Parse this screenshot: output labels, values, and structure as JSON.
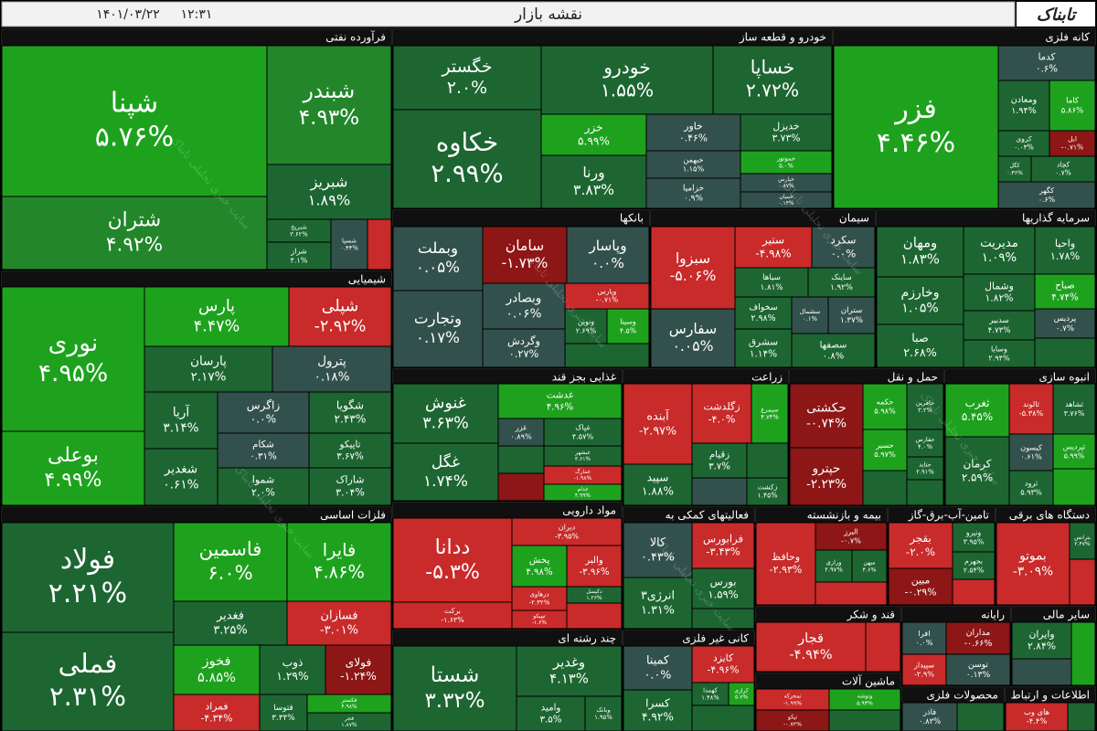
{
  "header": {
    "title": "نقشه بازار",
    "date": "۱۴۰۱/۰۳/۲۲",
    "time": "۱۲:۳۱",
    "logo": "تابناک",
    "watermark": "سایت خبری تحلیلی تابناک"
  },
  "sectors": [
    {
      "name": "فرآورده نفتی",
      "tiles": [
        {
          "label": "شپنا",
          "change": "۵.۷۶%"
        },
        {
          "label": "شتران",
          "change": "۴.۹۲%"
        },
        {
          "label": "شبندر",
          "change": "۴.۹۳%"
        },
        {
          "label": "شبریز",
          "change": "۱.۸۹%"
        },
        {
          "label": "شبریخ",
          "change": "۳.۶۲%"
        },
        {
          "label": "شراز",
          "change": "۴.۱%"
        },
        {
          "label": "شسپا",
          "change": "۰.۴۴%"
        }
      ]
    },
    {
      "name": "خودرو و قطعه ساز",
      "tiles": [
        {
          "label": "خگستر",
          "change": "۲.۰%"
        },
        {
          "label": "خکاوه",
          "change": "۲.۹۹%"
        },
        {
          "label": "خودرو",
          "change": "۱.۵۵%"
        },
        {
          "label": "خساپا",
          "change": "۲.۷۲%"
        },
        {
          "label": "خزر",
          "change": "۵.۹۹%"
        },
        {
          "label": "ورنا",
          "change": "۳.۸۳%"
        },
        {
          "label": "خاور",
          "change": "۰.۴۶%"
        },
        {
          "label": "خبهمن",
          "change": "۱.۱۵%"
        },
        {
          "label": "خزامیا",
          "change": "۰.۹%"
        },
        {
          "label": "خدیزل",
          "change": "۳.۷۳%"
        },
        {
          "label": "خموتور",
          "change": "۵.۰%"
        },
        {
          "label": "خپارس",
          "change": "۰.۸۷%"
        },
        {
          "label": "خبنیان",
          "change": "۰.۱۴%"
        }
      ]
    },
    {
      "name": "کانه فلزی",
      "tiles": [
        {
          "label": "فزر",
          "change": "۴.۴۶%"
        },
        {
          "label": "کدما",
          "change": "۰.۶%"
        },
        {
          "label": "ومعادن",
          "change": "۱.۹۴%"
        },
        {
          "label": "کاما",
          "change": "۵.۸۶%"
        },
        {
          "label": "کروی",
          "change": "۰.۰۳%"
        },
        {
          "label": "ابل",
          "change": "-۰.۷۱%"
        },
        {
          "label": "کگل",
          "change": "۰.۳۶%"
        },
        {
          "label": "کچاد",
          "change": "۰.۷%"
        },
        {
          "label": "کگهر",
          "change": "۰.۶%"
        }
      ]
    },
    {
      "name": "بانکها",
      "tiles": [
        {
          "label": "وبملت",
          "change": "۰.۰۵%"
        },
        {
          "label": "وتجارت",
          "change": "۰.۱۷%"
        },
        {
          "label": "سامان",
          "change": "-۱.۷۳%"
        },
        {
          "label": "وپاسار",
          "change": "۰.۰%"
        },
        {
          "label": "وبصادر",
          "change": "۰.۰۶%"
        },
        {
          "label": "وپارس",
          "change": "-۰.۷۱%"
        },
        {
          "label": "وگردش",
          "change": "۰.۲۷%"
        },
        {
          "label": "ونوین",
          "change": "۲.۶۹%"
        },
        {
          "label": "وسینا",
          "change": "۴.۵%"
        }
      ]
    },
    {
      "name": "سیمان",
      "tiles": [
        {
          "label": "سبزوا",
          "change": "-۵.۰۶%"
        },
        {
          "label": "سفارس",
          "change": "۰.۰۵%"
        },
        {
          "label": "ستیر",
          "change": "-۴.۹۸%"
        },
        {
          "label": "سکرد",
          "change": "۰.۰%"
        },
        {
          "label": "سیاها",
          "change": "۱.۸۱%"
        },
        {
          "label": "ساینک",
          "change": "۱.۹۲%"
        },
        {
          "label": "سخواف",
          "change": "۲.۹۸%"
        },
        {
          "label": "سشمال",
          "change": "۰.۱%"
        },
        {
          "label": "ستران",
          "change": "۱.۳۷%"
        },
        {
          "label": "سشرق",
          "change": "۱.۱۴%"
        },
        {
          "label": "سصفها",
          "change": "۰.۸%"
        }
      ]
    },
    {
      "name": "سرمایه گذاریها",
      "tiles": [
        {
          "label": "ومهان",
          "change": "۱.۸۳%"
        },
        {
          "label": "وخارزم",
          "change": "۱.۰۵%"
        },
        {
          "label": "صبا",
          "change": "۲.۶۸%"
        },
        {
          "label": "مدیریت",
          "change": "۱.۰۹%"
        },
        {
          "label": "وشمال",
          "change": "۱.۸۲%"
        },
        {
          "label": "سدبیر",
          "change": "۴.۷۳%"
        },
        {
          "label": "وسایا",
          "change": "۲.۹۴%"
        },
        {
          "label": "واحیا",
          "change": "۱.۷۸%"
        },
        {
          "label": "صباح",
          "change": "۴.۷۴%"
        },
        {
          "label": "پردیس",
          "change": "۰.۷%"
        }
      ]
    },
    {
      "name": "شیمیایی",
      "tiles": [
        {
          "label": "نوری",
          "change": "۴.۹۵%"
        },
        {
          "label": "بوعلی",
          "change": "۴.۹۹%"
        },
        {
          "label": "پارس",
          "change": "۴.۴۷%"
        },
        {
          "label": "شپلی",
          "change": "-۲.۹۲%"
        },
        {
          "label": "پارسان",
          "change": "۲.۱۷%"
        },
        {
          "label": "پترول",
          "change": "۰.۱۸%"
        },
        {
          "label": "آریا",
          "change": "۳.۱۴%"
        },
        {
          "label": "شغدیر",
          "change": "۰.۶۱%"
        },
        {
          "label": "زاگرس",
          "change": "۰.۰%"
        },
        {
          "label": "شکام",
          "change": "۰.۳۱%"
        },
        {
          "label": "شموا",
          "change": "۲.۰%"
        },
        {
          "label": "شگویا",
          "change": "۲.۴۳%"
        },
        {
          "label": "تاپیکو",
          "change": "۳.۶۷%"
        },
        {
          "label": "شاراک",
          "change": "۳.۰۴%"
        }
      ]
    },
    {
      "name": "فلزات اساسی",
      "tiles": [
        {
          "label": "فولاد",
          "change": "۲.۲۱%"
        },
        {
          "label": "فملی",
          "change": "۲.۳۱%"
        },
        {
          "label": "فاسمین",
          "change": "۶.۰%"
        },
        {
          "label": "فایرا",
          "change": "۴.۸۶%"
        },
        {
          "label": "فغدیر",
          "change": "۳.۲۵%"
        },
        {
          "label": "فسازان",
          "change": "-۳.۰۱%"
        },
        {
          "label": "فخوز",
          "change": "۵.۸۵%"
        },
        {
          "label": "ذوب",
          "change": "۱.۲۹%"
        },
        {
          "label": "فولای",
          "change": "-۱.۲۴%"
        },
        {
          "label": "فمراد",
          "change": "-۴.۳۴%"
        },
        {
          "label": "فتوسا",
          "change": "۳.۳۴%"
        },
        {
          "label": "فکستر",
          "change": "۴.۹۸%"
        },
        {
          "label": "فجر",
          "change": "۱.۸۷%"
        }
      ]
    },
    {
      "name": "غذایی بجز قند",
      "tiles": [
        {
          "label": "غنوش",
          "change": "۳.۶۳%"
        },
        {
          "label": "غگل",
          "change": "۱.۷۴%"
        },
        {
          "label": "غدشت",
          "change": "۴.۹۶%"
        },
        {
          "label": "غزر",
          "change": "۰.۸۹%"
        },
        {
          "label": "غپاک",
          "change": "۴.۵۷%"
        },
        {
          "label": "غبشهر",
          "change": "۳.۶۱%"
        },
        {
          "label": "غمارگ",
          "change": "-۱.۹۸%"
        },
        {
          "label": "غدام",
          "change": "۴.۹۹%"
        }
      ]
    },
    {
      "name": "مواد دارویی",
      "tiles": [
        {
          "label": "ددانا",
          "change": "-۵.۳%"
        },
        {
          "label": "برکت",
          "change": "-۱.۶۳%"
        },
        {
          "label": "دیران",
          "change": "-۳.۹۵%"
        },
        {
          "label": "پخش",
          "change": "۴.۹۸%"
        },
        {
          "label": "والبر",
          "change": "-۳.۹۶%"
        },
        {
          "label": "دکیسل",
          "change": "۱.۲۶%"
        },
        {
          "label": "درهاوی",
          "change": "-۲.۳۲%"
        },
        {
          "label": "تیپیکو",
          "change": "-۱.۶%"
        }
      ]
    },
    {
      "name": "چند رشته ای",
      "tiles": [
        {
          "label": "شستا",
          "change": "۳.۳۲%"
        },
        {
          "label": "وغدیر",
          "change": "۴.۱۳%"
        },
        {
          "label": "وامید",
          "change": "۳.۵%"
        },
        {
          "label": "وبانک",
          "change": "۱.۹۵%"
        }
      ]
    },
    {
      "name": "زراعت",
      "tiles": [
        {
          "label": "آبنده",
          "change": "-۲.۹۷%"
        },
        {
          "label": "سپید",
          "change": "۱.۸۸%"
        },
        {
          "label": "زگلدشت",
          "change": "-۴.۰%"
        },
        {
          "label": "سیمرغ",
          "change": "۴.۷۴%"
        },
        {
          "label": "زقیام",
          "change": "۳.۷%"
        },
        {
          "label": "زکشت",
          "change": "۱.۴۵%"
        }
      ]
    },
    {
      "name": "حمل و نقل",
      "tiles": [
        {
          "label": "حکشتی",
          "change": "-۰.۷۴%"
        },
        {
          "label": "حپترو",
          "change": "-۲.۲۳%"
        },
        {
          "label": "حکمه",
          "change": "۵.۹۸%"
        },
        {
          "label": "حافرین",
          "change": "۳.۲%"
        },
        {
          "label": "حسیر",
          "change": "۵.۹۷%"
        },
        {
          "label": "حفارس",
          "change": "۴.۰%"
        },
        {
          "label": "حتاید",
          "change": "۲.۹۱%"
        }
      ]
    },
    {
      "name": "انبوه سازی",
      "tiles": [
        {
          "label": "ثغرب",
          "change": "۵.۴۵%"
        },
        {
          "label": "کرمان",
          "change": "۲.۵۹%"
        },
        {
          "label": "ثالوند",
          "change": "-۵.۳۸%"
        },
        {
          "label": "ثشاهد",
          "change": "۳.۷۶%"
        },
        {
          "label": "کیسون",
          "change": "۰.۶۱%"
        },
        {
          "label": "ثپردیس",
          "change": "۵.۹۹%"
        },
        {
          "label": "ثرود",
          "change": "۵.۹۳%"
        }
      ]
    },
    {
      "name": "فعالیتهای کمکی به",
      "tiles": [
        {
          "label": "کالا",
          "change": "۰.۴۳%"
        },
        {
          "label": "انرژی۳",
          "change": "۱.۳۱%"
        },
        {
          "label": "فرابورس",
          "change": "-۳.۴۳%"
        },
        {
          "label": "بورس",
          "change": "۱.۵۹%"
        }
      ]
    },
    {
      "name": "بیمه و بازنشسته",
      "tiles": [
        {
          "label": "وحافظ",
          "change": "-۲.۹۳%"
        },
        {
          "label": "البرز",
          "change": "-۰.۷%"
        },
        {
          "label": "ورازی",
          "change": "۲.۹۷%"
        },
        {
          "label": "میهن",
          "change": "۴.۶%"
        }
      ]
    },
    {
      "name": "تامین-آب-برق-گاز",
      "tiles": [
        {
          "label": "بقجر",
          "change": "-۲.۰%"
        },
        {
          "label": "ونیرو",
          "change": "۳.۹۵%"
        },
        {
          "label": "بجهرم",
          "change": "۲.۵۴%"
        },
        {
          "label": "مبین",
          "change": "-۰.۲۹%"
        }
      ]
    },
    {
      "name": "دستگاه های برقی",
      "tiles": [
        {
          "label": "بموتو",
          "change": "-۳.۰۹%"
        },
        {
          "label": "بترانس",
          "change": "۲.۴۷%"
        }
      ]
    },
    {
      "name": "قند و شکر",
      "tiles": [
        {
          "label": "قجار",
          "change": "-۴.۹۴%"
        }
      ]
    },
    {
      "name": "ماشین آلات",
      "tiles": [
        {
          "label": "تمحرکه",
          "change": "-۱.۹۹%"
        },
        {
          "label": "تپکو",
          "change": "-۰.۷۲%"
        },
        {
          "label": "وتوشه",
          "change": "۵.۹۳%"
        }
      ]
    },
    {
      "name": "رایانه",
      "tiles": [
        {
          "label": "افرا",
          "change": "۰.۰%"
        },
        {
          "label": "سپیدار",
          "change": "-۲.۹%"
        },
        {
          "label": "مداران",
          "change": "-۰.۶۶%"
        },
        {
          "label": "توسن",
          "change": "۰.۱۳%"
        }
      ]
    },
    {
      "name": "سایر مالی",
      "tiles": [
        {
          "label": "وایران",
          "change": "۲.۸۴%"
        }
      ]
    },
    {
      "name": "کانی غیر فلزی",
      "tiles": [
        {
          "label": "کمینا",
          "change": "۰.۰%"
        },
        {
          "label": "کسرا",
          "change": "۴.۹۲%"
        },
        {
          "label": "کایزد",
          "change": "-۴.۹۶%"
        },
        {
          "label": "کهمدا",
          "change": "۱.۴۸%"
        },
        {
          "label": "کرازی",
          "change": "۵.۷%"
        }
      ]
    },
    {
      "name": "محصولات فلزی",
      "tiles": [
        {
          "label": "فاذر",
          "change": "۰.۸۳%"
        }
      ]
    },
    {
      "name": "اطلاعات و ارتباط",
      "tiles": [
        {
          "label": "های وب",
          "change": "-۴.۴%"
        }
      ]
    }
  ]
}
